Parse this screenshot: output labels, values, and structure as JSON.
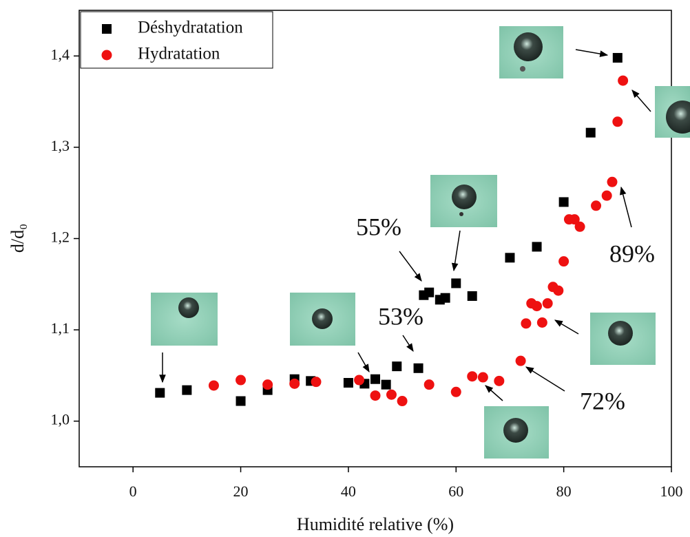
{
  "chart_data": {
    "type": "scatter",
    "xlabel": "Humidité relative (%)",
    "ylabel": "d/d₀",
    "xlim": [
      -10,
      100
    ],
    "xticks": [
      0,
      20,
      40,
      60,
      80,
      100
    ],
    "ylim": [
      0.95,
      1.45
    ],
    "yticks": [
      {
        "value": 1.0,
        "label": "1,0"
      },
      {
        "value": 1.1,
        "label": "1,1"
      },
      {
        "value": 1.2,
        "label": "1,2"
      },
      {
        "value": 1.3,
        "label": "1,3"
      },
      {
        "value": 1.4,
        "label": "1,4"
      }
    ],
    "legend": "upper left",
    "series": [
      {
        "name": "Déshydratation",
        "color": "#000000",
        "marker": "square",
        "x": [
          5,
          10,
          20,
          25,
          30,
          33,
          40,
          43,
          45,
          47,
          49,
          53,
          54,
          55,
          57,
          58,
          60,
          63,
          70,
          75,
          80,
          85,
          90
        ],
        "values": [
          1.031,
          1.034,
          1.022,
          1.034,
          1.046,
          1.044,
          1.042,
          1.041,
          1.046,
          1.04,
          1.06,
          1.058,
          1.138,
          1.141,
          1.133,
          1.135,
          1.151,
          1.137,
          1.179,
          1.191,
          1.24,
          1.316,
          1.398
        ]
      },
      {
        "name": "Hydratation",
        "color": "#ee1111",
        "marker": "circle",
        "x": [
          15,
          20,
          25,
          30,
          34,
          42,
          45,
          48,
          50,
          55,
          60,
          63,
          65,
          68,
          72,
          73,
          74,
          75,
          76,
          77,
          78,
          79,
          80,
          81,
          82,
          83,
          86,
          88,
          89,
          90,
          91
        ],
        "values": [
          1.039,
          1.045,
          1.04,
          1.041,
          1.043,
          1.045,
          1.028,
          1.029,
          1.022,
          1.04,
          1.032,
          1.049,
          1.048,
          1.044,
          1.066,
          1.107,
          1.129,
          1.126,
          1.108,
          1.129,
          1.147,
          1.143,
          1.175,
          1.221,
          1.221,
          1.213,
          1.236,
          1.247,
          1.262,
          1.328,
          1.373
        ]
      }
    ],
    "annotations": [
      "55%",
      "53%",
      "89%",
      "72%"
    ]
  }
}
